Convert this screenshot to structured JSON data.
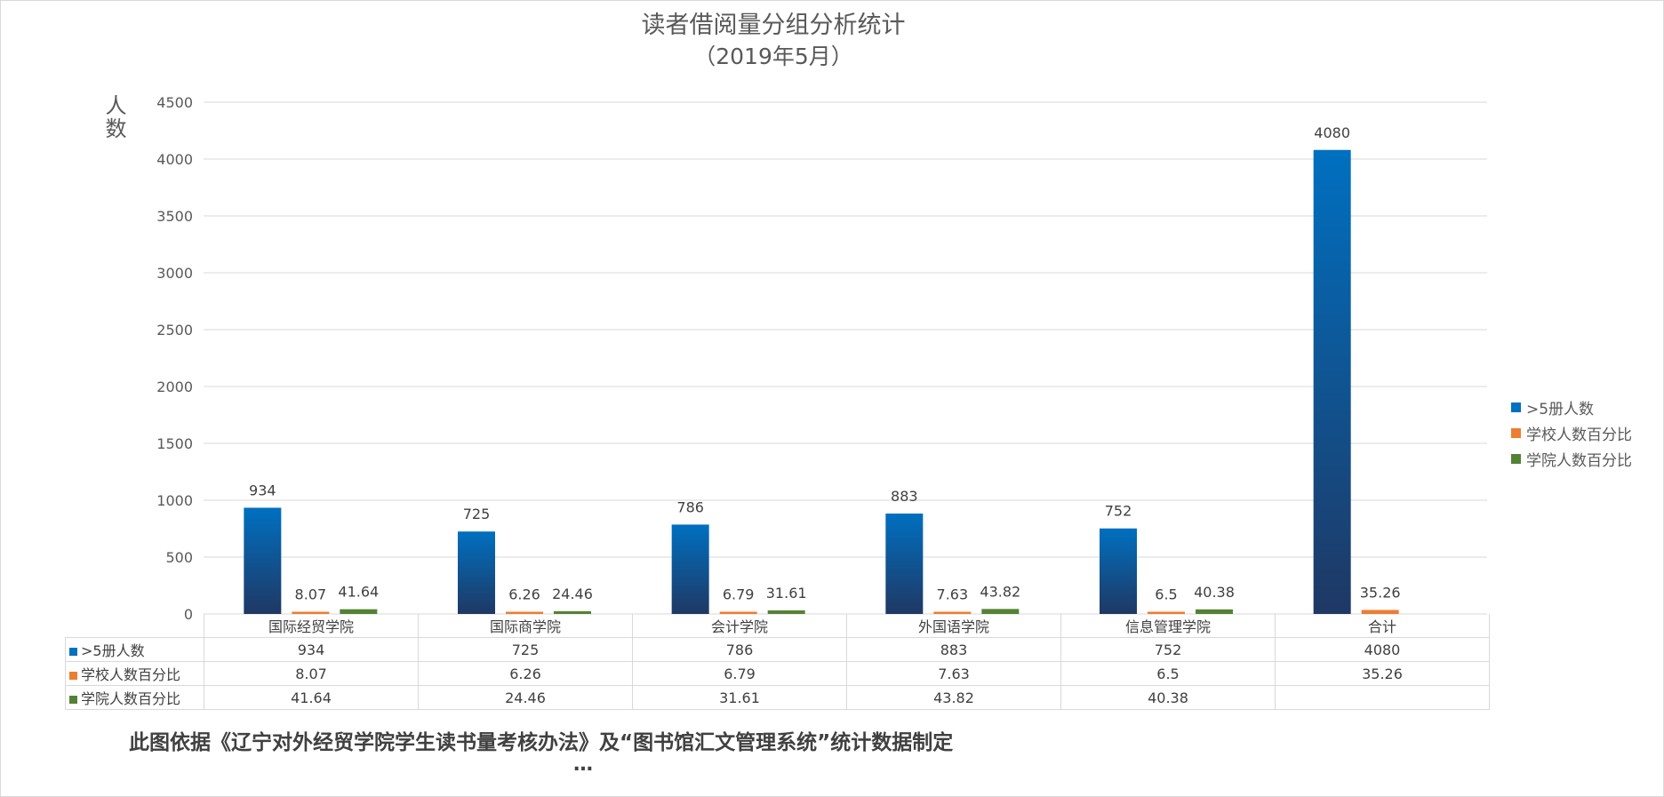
{
  "title": "读者借阅量分组分析统计",
  "subtitle": "（2019年5月）",
  "source_note": "此图依据《辽宁对外经贸学院学生读书量考核办法》及“图书馆汇文管理系统”统计数据制定",
  "ellipsis": "…",
  "colors": {
    "series1": "#0070c0",
    "series1_dark": "#1f3864",
    "series2": "#ed7d31",
    "series3": "#548235",
    "grid": "#d9d9d9"
  },
  "chart_data": {
    "type": "bar",
    "title": "读者借阅量分组分析统计",
    "subtitle": "（2019年5月）",
    "xlabel": "",
    "ylabel": "人数",
    "ylim": [
      0,
      4500
    ],
    "yticks": [
      0,
      500,
      1000,
      1500,
      2000,
      2500,
      3000,
      3500,
      4000,
      4500
    ],
    "grid": true,
    "legend_position": "right",
    "categories": [
      "国际经贸学院",
      "国际商学院",
      "会计学院",
      "外国语学院",
      "信息管理学院",
      "合计"
    ],
    "series": [
      {
        "name": ">5册人数",
        "values": [
          934,
          725,
          786,
          883,
          752,
          4080
        ]
      },
      {
        "name": "学校人数百分比",
        "values": [
          8.07,
          6.26,
          6.79,
          7.63,
          6.5,
          35.26
        ]
      },
      {
        "name": "学院人数百分比",
        "values": [
          41.64,
          24.46,
          31.61,
          43.82,
          40.38,
          null
        ]
      }
    ]
  }
}
